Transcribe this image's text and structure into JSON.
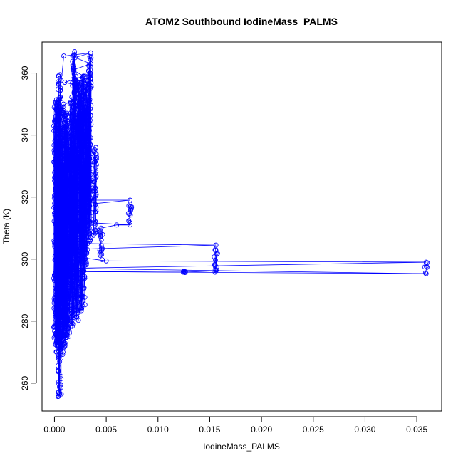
{
  "chart_data": {
    "type": "line",
    "title": "ATOM2 Southbound IodineMass_PALMS",
    "xlabel": "IodineMass_PALMS",
    "ylabel": "Theta (K)",
    "xlim": [
      -0.0012,
      0.0374
    ],
    "ylim": [
      251,
      370
    ],
    "x_ticks": [
      0.0,
      0.005,
      0.01,
      0.015,
      0.02,
      0.025,
      0.03,
      0.035
    ],
    "x_tick_labels": [
      "0.000",
      "0.005",
      "0.010",
      "0.015",
      "0.020",
      "0.025",
      "0.030",
      "0.035"
    ],
    "y_ticks": [
      260,
      280,
      300,
      320,
      340,
      360
    ],
    "y_tick_labels": [
      "260",
      "280",
      "300",
      "320",
      "340",
      "360"
    ],
    "grid": false,
    "marker": "open-circle",
    "series": [
      {
        "color": "#0000ff",
        "points": [
          [
            0.0002,
            270
          ],
          [
            0.0004,
            272
          ],
          [
            0.0001,
            276
          ],
          [
            0.0006,
            280
          ],
          [
            0.0003,
            284
          ],
          [
            0.001,
            287
          ],
          [
            0.0005,
            290
          ],
          [
            0.002,
            293
          ],
          [
            0.0008,
            296
          ],
          [
            0.0126,
            295.8
          ],
          [
            0.0156,
            296.2
          ],
          [
            0.0007,
            296.0
          ],
          [
            0.0359,
            295.3
          ],
          [
            0.0012,
            297
          ],
          [
            0.0359,
            299
          ],
          [
            0.005,
            299.4
          ],
          [
            0.0015,
            301
          ],
          [
            0.0006,
            303
          ],
          [
            0.0156,
            304.5
          ],
          [
            0.003,
            305
          ],
          [
            0.001,
            307
          ],
          [
            0.0025,
            309
          ],
          [
            0.0045,
            310
          ],
          [
            0.006,
            311
          ],
          [
            0.0073,
            311
          ],
          [
            0.002,
            312
          ],
          [
            0.0008,
            313
          ],
          [
            0.003,
            315
          ],
          [
            0.0012,
            317
          ],
          [
            0.0073,
            319
          ],
          [
            0.0015,
            319
          ],
          [
            0.0005,
            321
          ],
          [
            0.0022,
            323
          ],
          [
            0.001,
            326
          ],
          [
            0.003,
            328
          ],
          [
            0.0005,
            330
          ],
          [
            0.0018,
            333
          ],
          [
            0.004,
            336
          ],
          [
            0.001,
            338
          ],
          [
            0.0025,
            340
          ],
          [
            0.0005,
            342
          ],
          [
            0.003,
            345
          ],
          [
            0.0012,
            347
          ],
          [
            0.0006,
            349
          ],
          [
            0.002,
            352
          ],
          [
            0.0035,
            355
          ],
          [
            0.001,
            357
          ],
          [
            0.0028,
            359
          ],
          [
            0.0018,
            361
          ],
          [
            0.0035,
            363
          ],
          [
            0.002,
            365
          ],
          [
            0.0035,
            366.5
          ],
          [
            0.0009,
            365.5
          ],
          [
            0.0005,
            352
          ],
          [
            0.0003,
            345
          ],
          [
            0.0006,
            338
          ],
          [
            0.0002,
            330
          ],
          [
            0.0008,
            322
          ],
          [
            0.0004,
            314
          ],
          [
            0.001,
            306
          ],
          [
            0.0003,
            298
          ],
          [
            0.0007,
            290
          ],
          [
            0.0002,
            282
          ],
          [
            0.0005,
            276
          ],
          [
            0.0006,
            270
          ],
          [
            0.0004,
            268
          ]
        ]
      }
    ],
    "cluster_columns": [
      {
        "x": 0.0001,
        "ymin": 272,
        "ymax": 351
      },
      {
        "x": 0.0003,
        "ymin": 270,
        "ymax": 352
      },
      {
        "x": 0.0005,
        "ymin": 255,
        "ymax": 361
      },
      {
        "x": 0.0007,
        "ymin": 268,
        "ymax": 350
      },
      {
        "x": 0.0009,
        "ymin": 270,
        "ymax": 348
      },
      {
        "x": 0.0011,
        "ymin": 272,
        "ymax": 347
      },
      {
        "x": 0.0013,
        "ymin": 275,
        "ymax": 345
      },
      {
        "x": 0.0016,
        "ymin": 278,
        "ymax": 353
      },
      {
        "x": 0.0019,
        "ymin": 279,
        "ymax": 367
      },
      {
        "x": 0.0022,
        "ymin": 280,
        "ymax": 358
      },
      {
        "x": 0.0025,
        "ymin": 283,
        "ymax": 357
      },
      {
        "x": 0.0028,
        "ymin": 284,
        "ymax": 359
      },
      {
        "x": 0.0031,
        "ymin": 298,
        "ymax": 360
      },
      {
        "x": 0.0034,
        "ymin": 304,
        "ymax": 366
      },
      {
        "x": 0.0039,
        "ymin": 307,
        "ymax": 336
      },
      {
        "x": 0.0045,
        "ymin": 299,
        "ymax": 310
      },
      {
        "x": 0.0073,
        "ymin": 311,
        "ymax": 319
      },
      {
        "x": 0.0126,
        "ymin": 295.5,
        "ymax": 296.1
      },
      {
        "x": 0.0156,
        "ymin": 295.6,
        "ymax": 304.5
      },
      {
        "x": 0.0359,
        "ymin": 295,
        "ymax": 299
      }
    ]
  }
}
